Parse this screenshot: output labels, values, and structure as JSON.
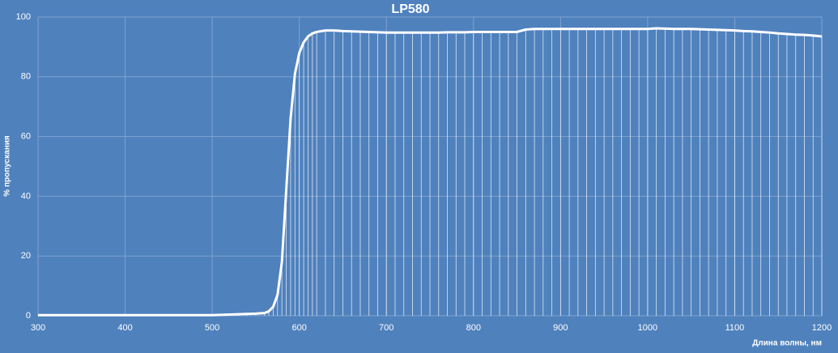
{
  "chart_data": {
    "type": "line",
    "title": "LP580",
    "ylabel": "% пропускания",
    "xlabel": "Длина волны, нм",
    "x": [
      300,
      350,
      400,
      450,
      500,
      530,
      540,
      550,
      560,
      565,
      570,
      575,
      580,
      585,
      590,
      595,
      600,
      605,
      610,
      615,
      620,
      630,
      640,
      650,
      660,
      670,
      680,
      690,
      700,
      710,
      720,
      730,
      740,
      750,
      760,
      770,
      780,
      790,
      800,
      810,
      820,
      830,
      840,
      850,
      860,
      870,
      880,
      890,
      900,
      910,
      920,
      930,
      940,
      950,
      960,
      970,
      980,
      990,
      1000,
      1010,
      1020,
      1030,
      1040,
      1050,
      1060,
      1070,
      1080,
      1090,
      1100,
      1110,
      1120,
      1130,
      1140,
      1150,
      1160,
      1170,
      1180,
      1190,
      1200
    ],
    "series": [
      {
        "name": "LP580",
        "color": "#ffffff",
        "values": [
          0.2,
          0.2,
          0.2,
          0.2,
          0.2,
          0.5,
          0.6,
          0.7,
          0.9,
          1.5,
          3,
          7,
          18,
          42,
          66,
          81,
          88,
          91.5,
          93.5,
          94.5,
          95,
          95.5,
          95.5,
          95.3,
          95.2,
          95.1,
          95,
          94.9,
          94.8,
          94.8,
          94.8,
          94.8,
          94.8,
          94.8,
          94.8,
          94.9,
          94.9,
          94.9,
          95,
          95,
          95,
          95,
          95,
          95,
          95.8,
          96,
          96,
          96,
          96,
          96,
          96,
          96,
          96,
          96,
          96,
          96,
          96,
          96,
          96,
          96.2,
          96.1,
          96,
          96,
          96,
          95.9,
          95.8,
          95.7,
          95.6,
          95.5,
          95.3,
          95.2,
          95,
          94.8,
          94.5,
          94.3,
          94.1,
          94,
          93.8,
          93.5
        ]
      }
    ],
    "xlim": [
      300,
      1200
    ],
    "xticks": [
      300,
      400,
      500,
      600,
      700,
      800,
      900,
      1000,
      1100,
      1200
    ],
    "ylim": [
      0,
      100
    ],
    "yticks": [
      0,
      20,
      40,
      60,
      80,
      100
    ],
    "grid": true,
    "background": "#4f81bd"
  }
}
